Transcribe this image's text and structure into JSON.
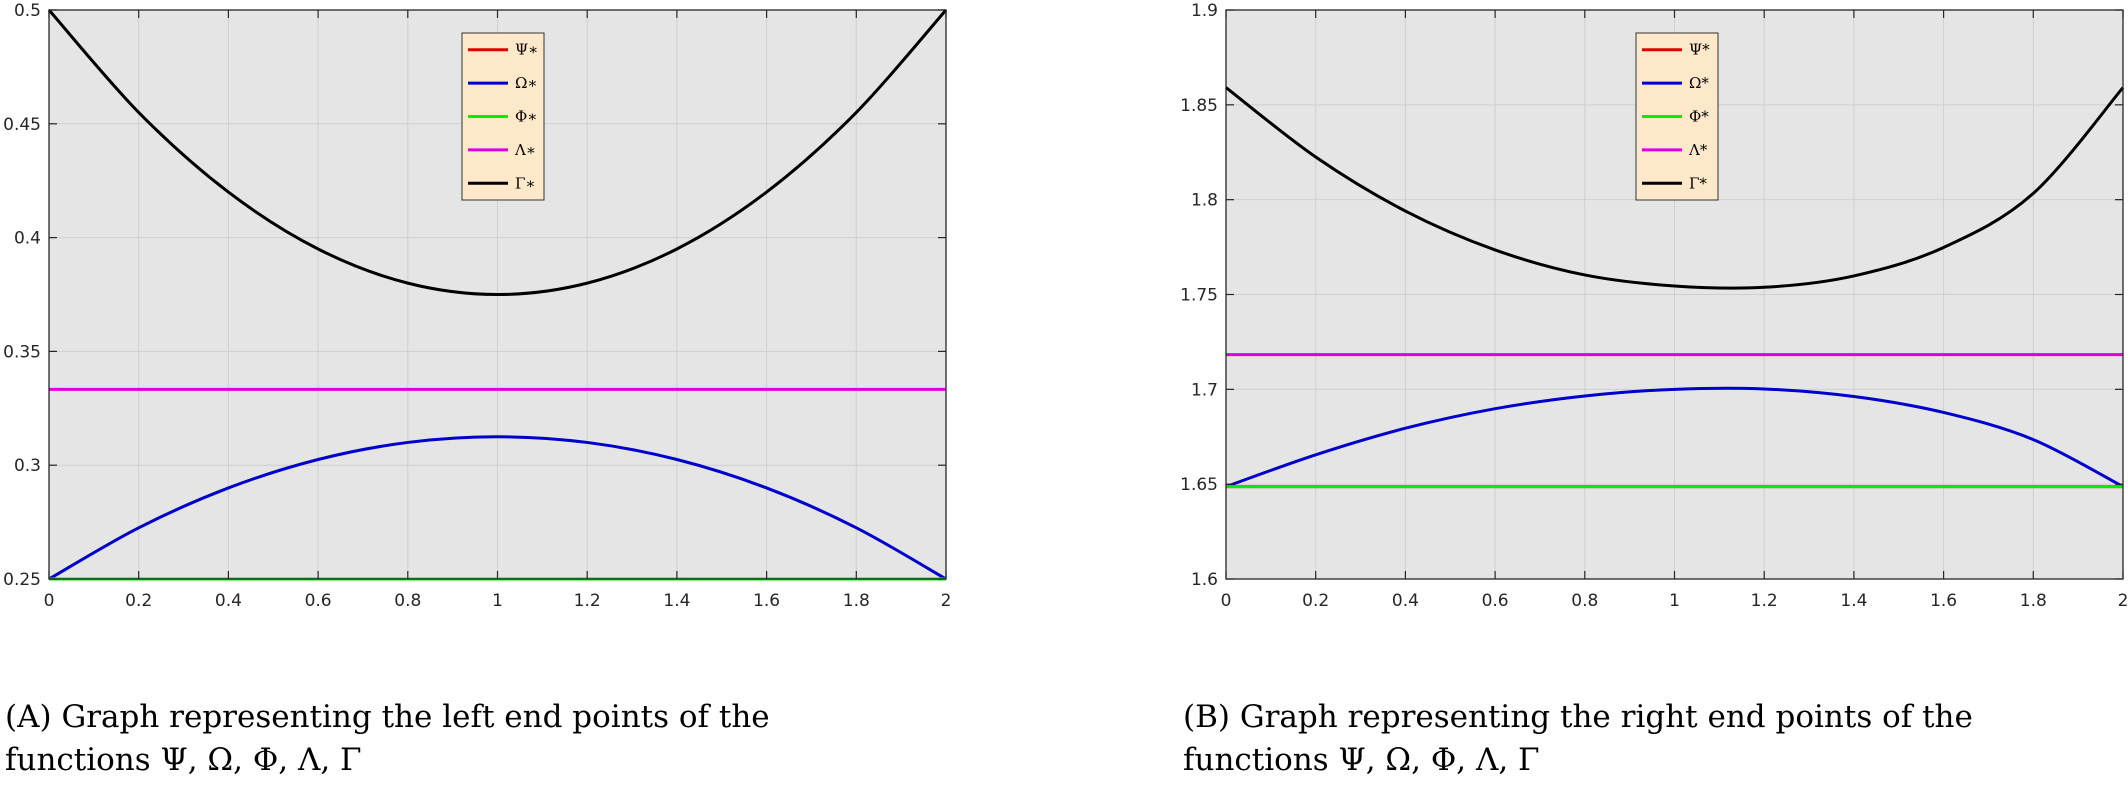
{
  "captions": [
    {
      "tag": "(A)",
      "text": "Graph representing the left end points of the functions Ψ, Ω, Φ, Λ, Γ"
    },
    {
      "tag": "(B)",
      "text": "Graph representing the right end points of the functions Ψ, Ω, Φ, Λ, Γ"
    }
  ],
  "colors": {
    "Psi": "#e00000",
    "Omega": "#0000cc",
    "Phi": "#00ee00",
    "Lambda": "#dd00dd",
    "Gamma": "#000000",
    "plot_background": "#e5e5e5",
    "legend_background": "#fde9c9"
  },
  "chart_data": [
    {
      "type": "line",
      "title": "",
      "xlabel": "",
      "ylabel": "",
      "xlim": [
        0,
        2
      ],
      "ylim": [
        0.25,
        0.5
      ],
      "x_ticks": [
        0,
        0.2,
        0.4,
        0.6,
        0.8,
        1,
        1.2,
        1.4,
        1.6,
        1.8,
        2
      ],
      "x_tick_labels": [
        "0",
        "0.2",
        "0.4",
        "0.6",
        "0.8",
        "1",
        "1.2",
        "1.4",
        "1.6",
        "1.8",
        "2"
      ],
      "y_ticks": [
        0.25,
        0.3,
        0.35,
        0.4,
        0.45,
        0.5
      ],
      "y_tick_labels": [
        "0.25",
        "0.3",
        "0.35",
        "0.4",
        "0.45",
        "0.5"
      ],
      "grid": true,
      "legend_position": "top-center",
      "x": [
        0,
        0.2,
        0.4,
        0.6,
        0.8,
        1,
        1.2,
        1.4,
        1.6,
        1.8,
        2
      ],
      "series": [
        {
          "name": "Ψ∗",
          "color_key": "Psi",
          "values": [
            0.25,
            0.25,
            0.25,
            0.25,
            0.25,
            0.25,
            0.25,
            0.25,
            0.25,
            0.25,
            0.25
          ]
        },
        {
          "name": "Ω∗",
          "color_key": "Omega",
          "values": [
            0.25,
            0.2725,
            0.29,
            0.3025,
            0.31,
            0.3125,
            0.31,
            0.3025,
            0.29,
            0.2725,
            0.25
          ]
        },
        {
          "name": "Φ∗",
          "color_key": "Phi",
          "values": [
            0.25,
            0.25,
            0.25,
            0.25,
            0.25,
            0.25,
            0.25,
            0.25,
            0.25,
            0.25,
            0.25
          ]
        },
        {
          "name": "Λ∗",
          "color_key": "Lambda",
          "values": [
            0.3333,
            0.3333,
            0.3333,
            0.3333,
            0.3333,
            0.3333,
            0.3333,
            0.3333,
            0.3333,
            0.3333,
            0.3333
          ]
        },
        {
          "name": "Γ∗",
          "color_key": "Gamma",
          "values": [
            0.5,
            0.455,
            0.42,
            0.395,
            0.38,
            0.375,
            0.38,
            0.395,
            0.42,
            0.455,
            0.5
          ]
        }
      ]
    },
    {
      "type": "line",
      "title": "",
      "xlabel": "",
      "ylabel": "",
      "xlim": [
        0,
        2
      ],
      "ylim": [
        1.6,
        1.9
      ],
      "x_ticks": [
        0,
        0.2,
        0.4,
        0.6,
        0.8,
        1,
        1.2,
        1.4,
        1.6,
        1.8,
        2
      ],
      "x_tick_labels": [
        "0",
        "0.2",
        "0.4",
        "0.6",
        "0.8",
        "1",
        "1.2",
        "1.4",
        "1.6",
        "1.8",
        "2"
      ],
      "y_ticks": [
        1.6,
        1.65,
        1.7,
        1.75,
        1.8,
        1.85,
        1.9
      ],
      "y_tick_labels": [
        "1.6",
        "1.65",
        "1.7",
        "1.75",
        "1.8",
        "1.85",
        "1.9"
      ],
      "grid": true,
      "legend_position": "top-center",
      "x": [
        0,
        0.2,
        0.4,
        0.6,
        0.8,
        1,
        1.2,
        1.4,
        1.6,
        1.8,
        2
      ],
      "series": [
        {
          "name": "Ψ*",
          "color_key": "Psi",
          "values": [
            1.6487,
            1.6487,
            1.6487,
            1.6487,
            1.6487,
            1.6487,
            1.6487,
            1.6487,
            1.6487,
            1.6487,
            1.6487
          ]
        },
        {
          "name": "Ω*",
          "color_key": "Omega",
          "values": [
            1.6487,
            1.6655,
            1.6795,
            1.6898,
            1.6965,
            1.7,
            1.7002,
            1.6962,
            1.6878,
            1.6735,
            1.6487
          ]
        },
        {
          "name": "Φ*",
          "color_key": "Phi",
          "values": [
            1.6487,
            1.6487,
            1.6487,
            1.6487,
            1.6487,
            1.6487,
            1.6487,
            1.6487,
            1.6487,
            1.6487,
            1.6487
          ]
        },
        {
          "name": "Λ*",
          "color_key": "Lambda",
          "values": [
            1.7183,
            1.7183,
            1.7183,
            1.7183,
            1.7183,
            1.7183,
            1.7183,
            1.7183,
            1.7183,
            1.7183,
            1.7183
          ]
        },
        {
          "name": "Γ*",
          "color_key": "Gamma",
          "values": [
            1.8591,
            1.8225,
            1.794,
            1.7735,
            1.7603,
            1.7545,
            1.7538,
            1.7598,
            1.7748,
            1.8033,
            1.8591
          ]
        }
      ]
    }
  ]
}
